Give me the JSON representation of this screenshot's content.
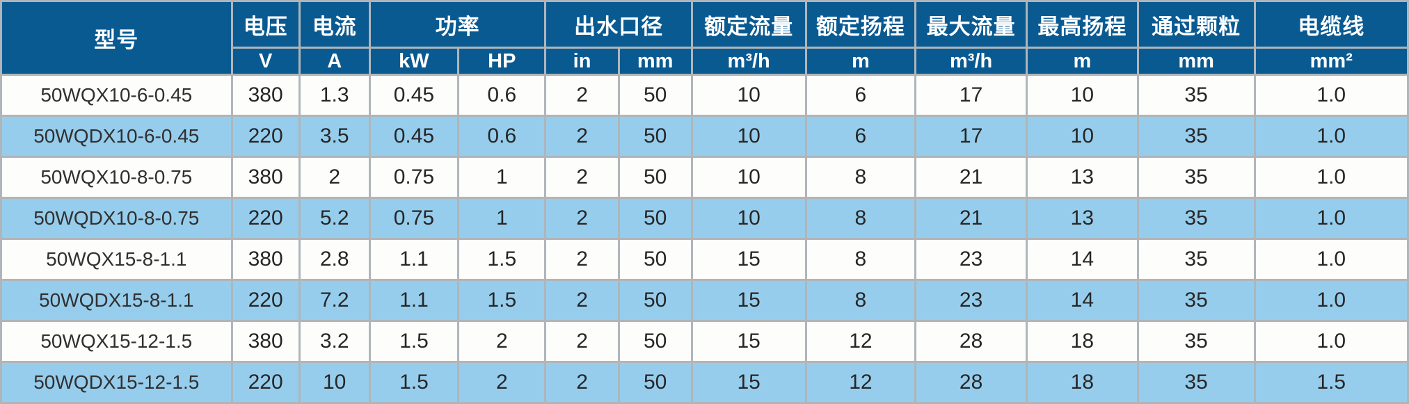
{
  "table_title": "pump-specification-table",
  "colors": {
    "header_background": "#0a5a92",
    "header_text": "#ffffff",
    "row_white": "#fdfdfc",
    "row_blue": "#97cdec",
    "border_gray": "#b0b5b9",
    "outer_border": "#8f969b",
    "data_text": "#262626"
  },
  "header_row1": [
    {
      "label": "型号",
      "rowspan": 2,
      "colspan": 1
    },
    {
      "label": "电压",
      "rowspan": 1,
      "colspan": 1
    },
    {
      "label": "电流",
      "rowspan": 1,
      "colspan": 1
    },
    {
      "label": "功率",
      "rowspan": 1,
      "colspan": 2
    },
    {
      "label": "出水口径",
      "rowspan": 1,
      "colspan": 2
    },
    {
      "label": "额定流量",
      "rowspan": 1,
      "colspan": 1
    },
    {
      "label": "额定扬程",
      "rowspan": 1,
      "colspan": 1
    },
    {
      "label": "最大流量",
      "rowspan": 1,
      "colspan": 1
    },
    {
      "label": "最高扬程",
      "rowspan": 1,
      "colspan": 1
    },
    {
      "label": "通过颗粒",
      "rowspan": 1,
      "colspan": 1
    },
    {
      "label": "电缆线",
      "rowspan": 1,
      "colspan": 1
    }
  ],
  "header_row2": [
    "V",
    "A",
    "kW",
    "HP",
    "in",
    "mm",
    "m³/h",
    "m",
    "m³/h",
    "m",
    "mm",
    "mm²"
  ],
  "rows": [
    {
      "model": "50WQX10-6-0.45",
      "voltage": "380",
      "current": "1.3",
      "power_kw": "0.45",
      "power_hp": "0.6",
      "outlet_in": "2",
      "outlet_mm": "50",
      "rated_flow": "10",
      "rated_head": "6",
      "max_flow": "17",
      "max_head": "10",
      "particle": "35",
      "cable": "1.0"
    },
    {
      "model": "50WQDX10-6-0.45",
      "voltage": "220",
      "current": "3.5",
      "power_kw": "0.45",
      "power_hp": "0.6",
      "outlet_in": "2",
      "outlet_mm": "50",
      "rated_flow": "10",
      "rated_head": "6",
      "max_flow": "17",
      "max_head": "10",
      "particle": "35",
      "cable": "1.0"
    },
    {
      "model": "50WQX10-8-0.75",
      "voltage": "380",
      "current": "2",
      "power_kw": "0.75",
      "power_hp": "1",
      "outlet_in": "2",
      "outlet_mm": "50",
      "rated_flow": "10",
      "rated_head": "8",
      "max_flow": "21",
      "max_head": "13",
      "particle": "35",
      "cable": "1.0"
    },
    {
      "model": "50WQDX10-8-0.75",
      "voltage": "220",
      "current": "5.2",
      "power_kw": "0.75",
      "power_hp": "1",
      "outlet_in": "2",
      "outlet_mm": "50",
      "rated_flow": "10",
      "rated_head": "8",
      "max_flow": "21",
      "max_head": "13",
      "particle": "35",
      "cable": "1.0"
    },
    {
      "model": "50WQX15-8-1.1",
      "voltage": "380",
      "current": "2.8",
      "power_kw": "1.1",
      "power_hp": "1.5",
      "outlet_in": "2",
      "outlet_mm": "50",
      "rated_flow": "15",
      "rated_head": "8",
      "max_flow": "23",
      "max_head": "14",
      "particle": "35",
      "cable": "1.0"
    },
    {
      "model": "50WQDX15-8-1.1",
      "voltage": "220",
      "current": "7.2",
      "power_kw": "1.1",
      "power_hp": "1.5",
      "outlet_in": "2",
      "outlet_mm": "50",
      "rated_flow": "15",
      "rated_head": "8",
      "max_flow": "23",
      "max_head": "14",
      "particle": "35",
      "cable": "1.0"
    },
    {
      "model": "50WQX15-12-1.5",
      "voltage": "380",
      "current": "3.2",
      "power_kw": "1.5",
      "power_hp": "2",
      "outlet_in": "2",
      "outlet_mm": "50",
      "rated_flow": "15",
      "rated_head": "12",
      "max_flow": "28",
      "max_head": "18",
      "particle": "35",
      "cable": "1.0"
    },
    {
      "model": "50WQDX15-12-1.5",
      "voltage": "220",
      "current": "10",
      "power_kw": "1.5",
      "power_hp": "2",
      "outlet_in": "2",
      "outlet_mm": "50",
      "rated_flow": "15",
      "rated_head": "12",
      "max_flow": "28",
      "max_head": "18",
      "particle": "35",
      "cable": "1.5"
    }
  ],
  "row_field_order": [
    "model",
    "voltage",
    "current",
    "power_kw",
    "power_hp",
    "outlet_in",
    "outlet_mm",
    "rated_flow",
    "rated_head",
    "max_flow",
    "max_head",
    "particle",
    "cable"
  ]
}
